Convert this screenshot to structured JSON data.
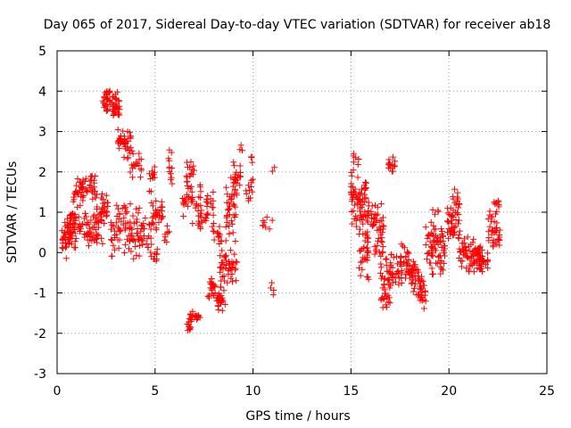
{
  "chart_data": {
    "type": "scatter",
    "title": "Day 065 of 2017, Sidereal Day-to-day VTEC variation (SDTVAR) for receiver ab18",
    "xlabel": "GPS time / hours",
    "ylabel": "SDTVAR / TECUs",
    "xlim": [
      0,
      25
    ],
    "ylim": [
      -3,
      5
    ],
    "xticks": [
      "0",
      "5",
      "10",
      "15",
      "20",
      "25"
    ],
    "yticks": [
      "-3",
      "-2",
      "-1",
      "0",
      "1",
      "2",
      "3",
      "4",
      "5"
    ],
    "grid": true,
    "marker": "+",
    "colors": {
      "marker": "#ff0000",
      "grid": "#a0a0a0",
      "axis": "#000000"
    },
    "segments": [
      {
        "x0": 0.25,
        "x1": 0.5,
        "center": 0.3,
        "spread": 0.6,
        "count": 22
      },
      {
        "x0": 0.5,
        "x1": 1.0,
        "center": 0.6,
        "spread": 0.5,
        "count": 30
      },
      {
        "x0": 0.8,
        "x1": 1.4,
        "center": 1.5,
        "spread": 0.5,
        "count": 30
      },
      {
        "x0": 0.5,
        "x1": 1.5,
        "center": 0.7,
        "spread": 0.4,
        "count": 40
      },
      {
        "x0": 1.4,
        "x1": 2.0,
        "center": 1.6,
        "spread": 0.4,
        "count": 25
      },
      {
        "x0": 1.5,
        "x1": 2.4,
        "center": 0.5,
        "spread": 0.5,
        "count": 40
      },
      {
        "x0": 2.0,
        "x1": 2.6,
        "center": 1.1,
        "spread": 0.5,
        "count": 30
      },
      {
        "x0": 2.3,
        "x1": 2.9,
        "center": 3.8,
        "spread": 0.4,
        "count": 35
      },
      {
        "x0": 2.8,
        "x1": 3.2,
        "center": 3.6,
        "spread": 0.5,
        "count": 25
      },
      {
        "x0": 3.1,
        "x1": 3.5,
        "center": 2.8,
        "spread": 0.3,
        "count": 20
      },
      {
        "x0": 3.4,
        "x1": 3.8,
        "center": 2.7,
        "spread": 0.4,
        "count": 20
      },
      {
        "x0": 3.7,
        "x1": 4.3,
        "center": 2.2,
        "spread": 0.4,
        "count": 20
      },
      {
        "x0": 2.7,
        "x1": 3.5,
        "center": 0.6,
        "spread": 0.8,
        "count": 40
      },
      {
        "x0": 3.5,
        "x1": 4.2,
        "center": 0.6,
        "spread": 0.9,
        "count": 40
      },
      {
        "x0": 4.2,
        "x1": 4.8,
        "center": 0.4,
        "spread": 0.5,
        "count": 25
      },
      {
        "x0": 4.8,
        "x1": 5.4,
        "center": 0.9,
        "spread": 0.5,
        "count": 30
      },
      {
        "x0": 4.7,
        "x1": 5.0,
        "center": 1.9,
        "spread": 0.4,
        "count": 12
      },
      {
        "x0": 4.8,
        "x1": 5.2,
        "center": -0.1,
        "spread": 0.4,
        "count": 10
      },
      {
        "x0": 5.4,
        "x1": 5.8,
        "center": 0.4,
        "spread": 0.3,
        "count": 8
      },
      {
        "x0": 5.6,
        "x1": 5.9,
        "center": 2.1,
        "spread": 0.6,
        "count": 12
      },
      {
        "x0": 6.4,
        "x1": 6.7,
        "center": 1.2,
        "spread": 0.6,
        "count": 12
      },
      {
        "x0": 6.6,
        "x1": 7.0,
        "center": 1.8,
        "spread": 0.6,
        "count": 25
      },
      {
        "x0": 6.6,
        "x1": 6.8,
        "center": -1.8,
        "spread": 0.3,
        "count": 12
      },
      {
        "x0": 6.8,
        "x1": 7.3,
        "center": -1.6,
        "spread": 0.15,
        "count": 20
      },
      {
        "x0": 6.9,
        "x1": 7.4,
        "center": 1.2,
        "spread": 0.5,
        "count": 15
      },
      {
        "x0": 7.2,
        "x1": 7.6,
        "center": 0.8,
        "spread": 0.3,
        "count": 12
      },
      {
        "x0": 7.6,
        "x1": 8.0,
        "center": 1.0,
        "spread": 0.6,
        "count": 20
      },
      {
        "x0": 7.7,
        "x1": 8.2,
        "center": -0.9,
        "spread": 0.3,
        "count": 25
      },
      {
        "x0": 8.0,
        "x1": 8.4,
        "center": 0.4,
        "spread": 0.4,
        "count": 12
      },
      {
        "x0": 8.2,
        "x1": 8.6,
        "center": -1.1,
        "spread": 0.5,
        "count": 20
      },
      {
        "x0": 8.3,
        "x1": 9.2,
        "center": -0.4,
        "spread": 0.5,
        "count": 45
      },
      {
        "x0": 8.6,
        "x1": 9.2,
        "center": 1.0,
        "spread": 1.0,
        "count": 40
      },
      {
        "x0": 9.0,
        "x1": 9.4,
        "center": 1.8,
        "spread": 0.5,
        "count": 20
      },
      {
        "x0": 9.3,
        "x1": 9.5,
        "center": 2.6,
        "spread": 0.1,
        "count": 3
      },
      {
        "x0": 9.6,
        "x1": 10.0,
        "center": 1.6,
        "spread": 0.4,
        "count": 12
      },
      {
        "x0": 9.8,
        "x1": 10.0,
        "center": 2.4,
        "spread": 0.2,
        "count": 4
      },
      {
        "x0": 10.5,
        "x1": 11.2,
        "center": 0.7,
        "spread": 0.2,
        "count": 8
      },
      {
        "x0": 10.9,
        "x1": 11.1,
        "center": -0.9,
        "spread": 0.2,
        "count": 4
      },
      {
        "x0": 10.9,
        "x1": 11.1,
        "center": 2.1,
        "spread": 0.1,
        "count": 2
      },
      {
        "x0": 15.0,
        "x1": 15.3,
        "center": 1.3,
        "spread": 0.8,
        "count": 25
      },
      {
        "x0": 15.1,
        "x1": 15.4,
        "center": 2.3,
        "spread": 0.3,
        "count": 8
      },
      {
        "x0": 15.3,
        "x1": 15.8,
        "center": 1.3,
        "spread": 0.7,
        "count": 40
      },
      {
        "x0": 15.4,
        "x1": 15.9,
        "center": 0.1,
        "spread": 0.9,
        "count": 40
      },
      {
        "x0": 15.8,
        "x1": 16.3,
        "center": 0.9,
        "spread": 0.5,
        "count": 20
      },
      {
        "x0": 16.2,
        "x1": 16.7,
        "center": 0.6,
        "spread": 0.8,
        "count": 30
      },
      {
        "x0": 16.5,
        "x1": 17.0,
        "center": -0.7,
        "spread": 0.9,
        "count": 40
      },
      {
        "x0": 16.9,
        "x1": 17.4,
        "center": 2.2,
        "spread": 0.3,
        "count": 15
      },
      {
        "x0": 17.0,
        "x1": 17.6,
        "center": -0.5,
        "spread": 0.6,
        "count": 30
      },
      {
        "x0": 17.5,
        "x1": 18.2,
        "center": -0.3,
        "spread": 0.6,
        "count": 35
      },
      {
        "x0": 18.0,
        "x1": 18.5,
        "center": -0.6,
        "spread": 0.5,
        "count": 25
      },
      {
        "x0": 18.4,
        "x1": 18.9,
        "center": -0.9,
        "spread": 0.6,
        "count": 30
      },
      {
        "x0": 18.8,
        "x1": 19.2,
        "center": 0.1,
        "spread": 0.7,
        "count": 25
      },
      {
        "x0": 19.1,
        "x1": 19.7,
        "center": 0.3,
        "spread": 1.0,
        "count": 40
      },
      {
        "x0": 19.6,
        "x1": 19.8,
        "center": 0.0,
        "spread": 0.6,
        "count": 10
      },
      {
        "x0": 19.9,
        "x1": 20.3,
        "center": 0.7,
        "spread": 0.5,
        "count": 25
      },
      {
        "x0": 20.2,
        "x1": 20.6,
        "center": 1.0,
        "spread": 0.7,
        "count": 25
      },
      {
        "x0": 20.5,
        "x1": 21.0,
        "center": 0.1,
        "spread": 0.5,
        "count": 30
      },
      {
        "x0": 21.0,
        "x1": 21.6,
        "center": -0.1,
        "spread": 0.5,
        "count": 40
      },
      {
        "x0": 21.5,
        "x1": 22.0,
        "center": -0.2,
        "spread": 0.4,
        "count": 30
      },
      {
        "x0": 22.0,
        "x1": 22.6,
        "center": 0.5,
        "spread": 0.6,
        "count": 35
      },
      {
        "x0": 22.3,
        "x1": 22.6,
        "center": 1.2,
        "spread": 0.2,
        "count": 8
      }
    ]
  }
}
